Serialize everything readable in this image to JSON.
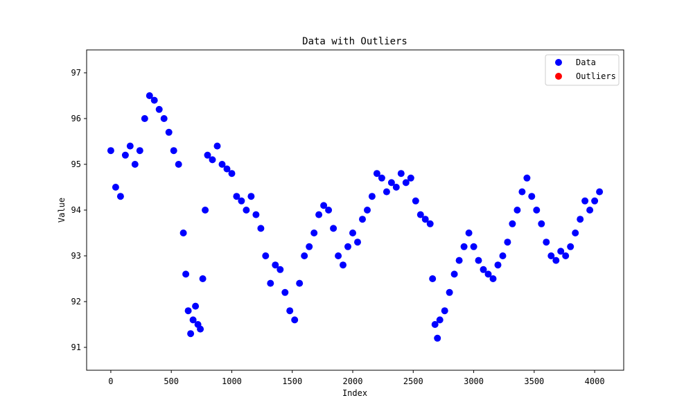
{
  "chart_data": {
    "type": "scatter",
    "title": "Data with Outliers",
    "xlabel": "Index",
    "ylabel": "Value",
    "xlim": [
      -200,
      4240
    ],
    "ylim": [
      90.5,
      97.5
    ],
    "x_ticks": [
      0,
      500,
      1000,
      1500,
      2000,
      2500,
      3000,
      3500,
      4000
    ],
    "y_ticks": [
      91,
      92,
      93,
      94,
      95,
      96,
      97
    ],
    "grid": false,
    "legend_position": "top-right",
    "series": [
      {
        "name": "Data",
        "color": "#0000ff",
        "x": [
          0,
          40,
          80,
          120,
          160,
          200,
          240,
          280,
          320,
          360,
          400,
          440,
          480,
          520,
          560,
          600,
          620,
          640,
          660,
          680,
          700,
          720,
          740,
          760,
          780,
          800,
          840,
          880,
          920,
          960,
          1000,
          1040,
          1080,
          1120,
          1160,
          1200,
          1240,
          1280,
          1320,
          1360,
          1400,
          1440,
          1480,
          1520,
          1560,
          1600,
          1640,
          1680,
          1720,
          1760,
          1800,
          1840,
          1880,
          1920,
          1960,
          2000,
          2040,
          2080,
          2120,
          2160,
          2200,
          2240,
          2280,
          2320,
          2360,
          2400,
          2440,
          2480,
          2520,
          2560,
          2600,
          2640,
          2660,
          2680,
          2700,
          2720,
          2760,
          2800,
          2840,
          2880,
          2920,
          2960,
          3000,
          3040,
          3080,
          3120,
          3160,
          3200,
          3240,
          3280,
          3320,
          3360,
          3400,
          3440,
          3480,
          3520,
          3560,
          3600,
          3640,
          3680,
          3720,
          3760,
          3800,
          3840,
          3880,
          3920,
          3960,
          4000,
          4040
        ],
        "y": [
          95.3,
          94.5,
          94.3,
          95.2,
          95.4,
          95.0,
          95.3,
          96.0,
          96.5,
          96.4,
          96.2,
          96.0,
          95.7,
          95.3,
          95.0,
          93.5,
          92.6,
          91.8,
          91.3,
          91.6,
          91.9,
          91.5,
          91.4,
          92.5,
          94.0,
          95.2,
          95.1,
          95.4,
          95.0,
          94.9,
          94.8,
          94.3,
          94.2,
          94.0,
          94.3,
          93.9,
          93.6,
          93.0,
          92.4,
          92.8,
          92.7,
          92.2,
          91.8,
          91.6,
          92.4,
          93.0,
          93.2,
          93.5,
          93.9,
          94.1,
          94.0,
          93.6,
          93.0,
          92.8,
          93.2,
          93.5,
          93.3,
          93.8,
          94.0,
          94.3,
          94.8,
          94.7,
          94.4,
          94.6,
          94.5,
          94.8,
          94.6,
          94.7,
          94.2,
          93.9,
          93.8,
          93.7,
          92.5,
          91.5,
          91.2,
          91.6,
          91.8,
          92.2,
          92.6,
          92.9,
          93.2,
          93.5,
          93.2,
          92.9,
          92.7,
          92.6,
          92.5,
          92.8,
          93.0,
          93.3,
          93.7,
          94.0,
          94.4,
          94.7,
          94.3,
          94.0,
          93.7,
          93.3,
          93.0,
          92.9,
          93.1,
          93.0,
          93.2,
          93.5,
          93.8,
          94.2,
          94.0,
          94.2,
          94.4
        ]
      },
      {
        "name": "Outliers",
        "color": "#ff0000",
        "x": [],
        "y": []
      }
    ]
  }
}
